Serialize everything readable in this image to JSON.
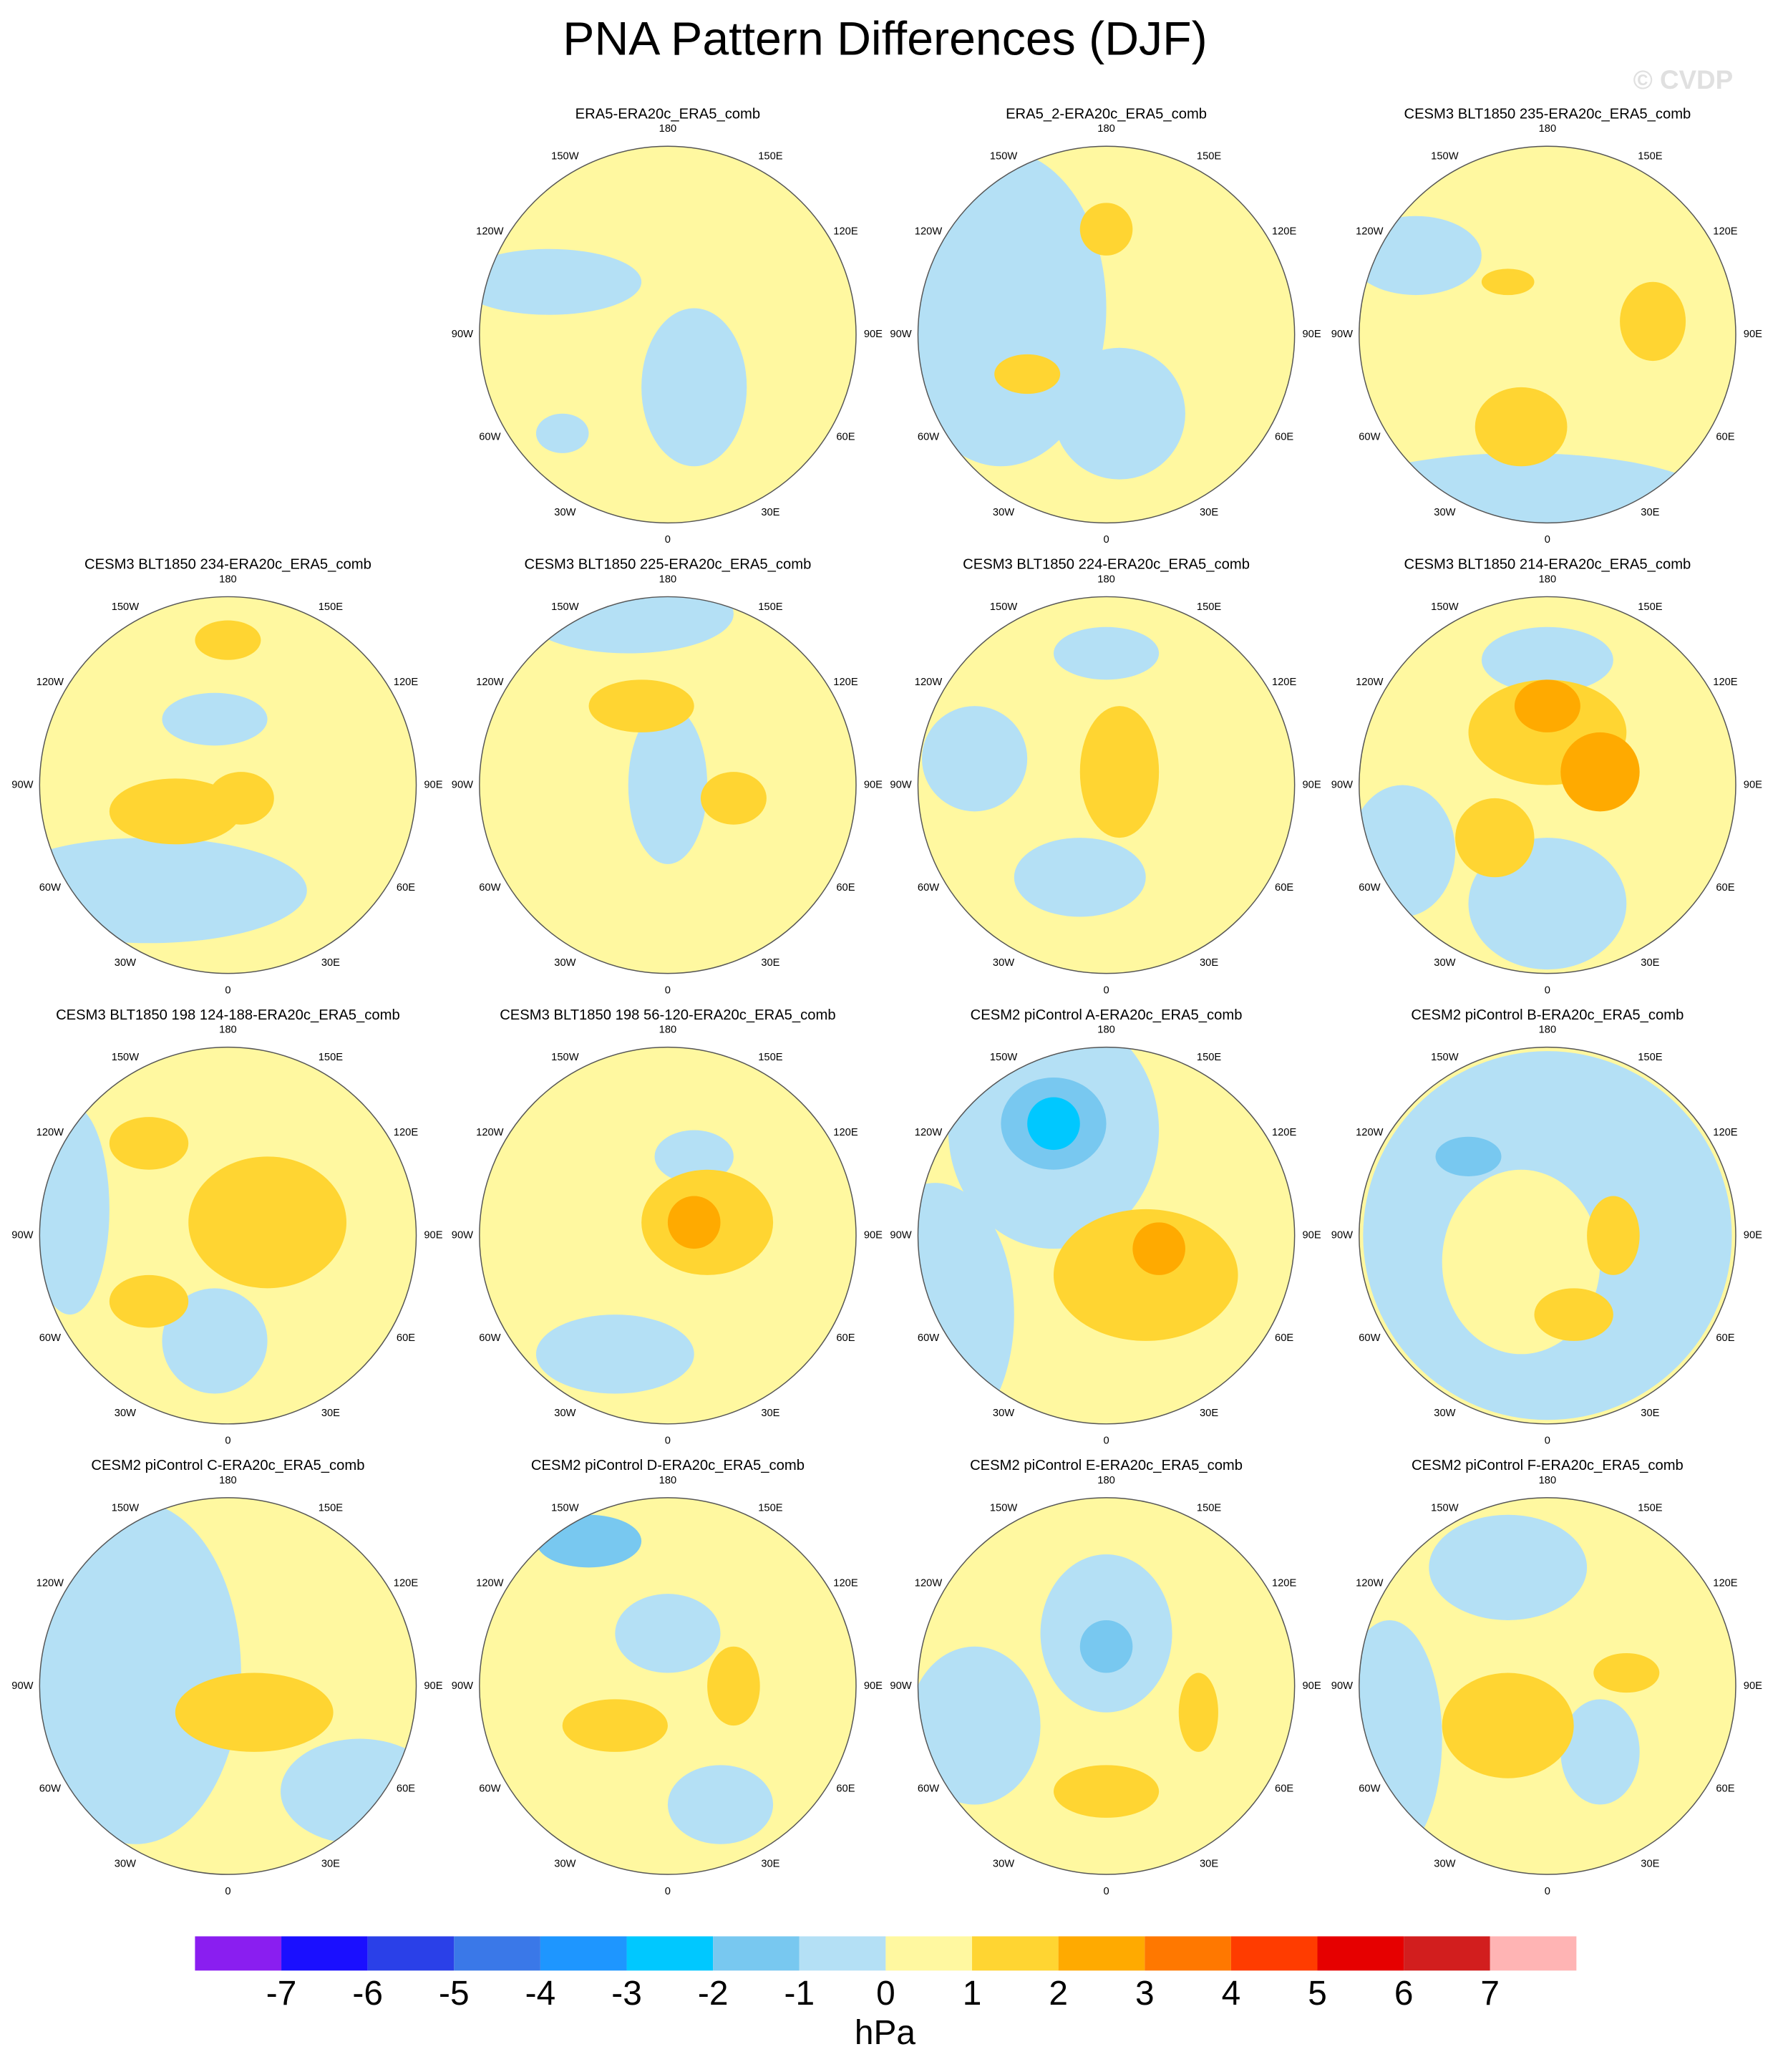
{
  "title": "PNA Pattern Differences (DJF)",
  "watermark": "© CVDP",
  "lon_labels": [
    "180",
    "150E",
    "120E",
    "90E",
    "60E",
    "30E",
    "0",
    "30W",
    "60W",
    "90W",
    "120W",
    "150W"
  ],
  "panels": [
    {
      "title": "ERA5-ERA20c_ERA5_comb"
    },
    {
      "title": "ERA5_2-ERA20c_ERA5_comb"
    },
    {
      "title": "CESM3 BLT1850 235-ERA20c_ERA5_comb"
    },
    {
      "title": "CESM3 BLT1850 234-ERA20c_ERA5_comb"
    },
    {
      "title": "CESM3 BLT1850 225-ERA20c_ERA5_comb"
    },
    {
      "title": "CESM3 BLT1850 224-ERA20c_ERA5_comb"
    },
    {
      "title": "CESM3 BLT1850 214-ERA20c_ERA5_comb"
    },
    {
      "title": "CESM3 BLT1850 198 124-188-ERA20c_ERA5_comb"
    },
    {
      "title": "CESM3 BLT1850 198 56-120-ERA20c_ERA5_comb"
    },
    {
      "title": "CESM2 piControl A-ERA20c_ERA5_comb"
    },
    {
      "title": "CESM2 piControl B-ERA20c_ERA5_comb"
    },
    {
      "title": "CESM2 piControl C-ERA20c_ERA5_comb"
    },
    {
      "title": "CESM2 piControl D-ERA20c_ERA5_comb"
    },
    {
      "title": "CESM2 piControl E-ERA20c_ERA5_comb"
    },
    {
      "title": "CESM2 piControl F-ERA20c_ERA5_comb"
    }
  ],
  "colorbar": {
    "levels": [
      -7,
      -6,
      -5,
      -4,
      -3,
      -2,
      -1,
      0,
      1,
      2,
      3,
      4,
      5,
      6,
      7
    ],
    "colors": [
      "#8a1ef0",
      "#1a0fff",
      "#2a40e8",
      "#3a78e8",
      "#1e96ff",
      "#00c8ff",
      "#78c8f0",
      "#b4e0f5",
      "#fff8a0",
      "#ffd532",
      "#ffaa00",
      "#ff7800",
      "#ff3c00",
      "#e60000",
      "#d21e1e",
      "#ffb4b4"
    ],
    "unit": "hPa"
  }
}
